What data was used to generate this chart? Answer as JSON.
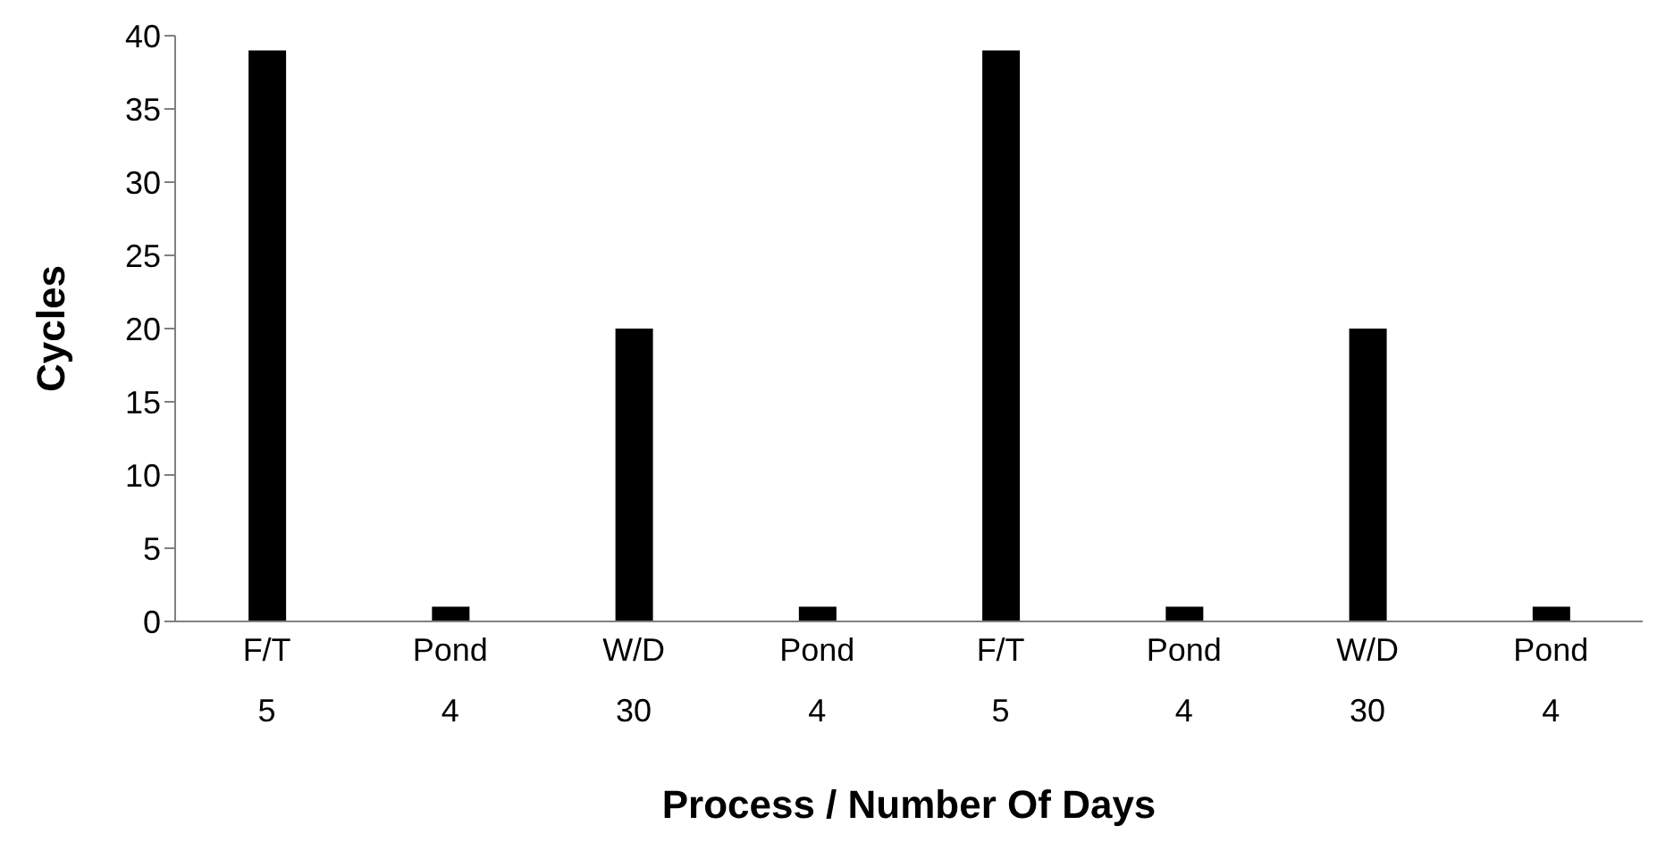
{
  "chart_data": {
    "type": "bar",
    "xlabel": "Process / Number Of Days",
    "ylabel": "Cycles",
    "categories": [
      "F/T\n5",
      "Pond\n4",
      "W/D\n30",
      "Pond\n4",
      "F/T\n5",
      "Pond\n4",
      "W/D\n30",
      "Pond\n4"
    ],
    "values": [
      39,
      1,
      20,
      1,
      39,
      1,
      20,
      1
    ],
    "color": "#000000",
    "ylim": [
      0,
      40
    ],
    "yticks": [
      0,
      5,
      10,
      15,
      20,
      25,
      30,
      35,
      40
    ],
    "grid": false,
    "legend": false
  }
}
